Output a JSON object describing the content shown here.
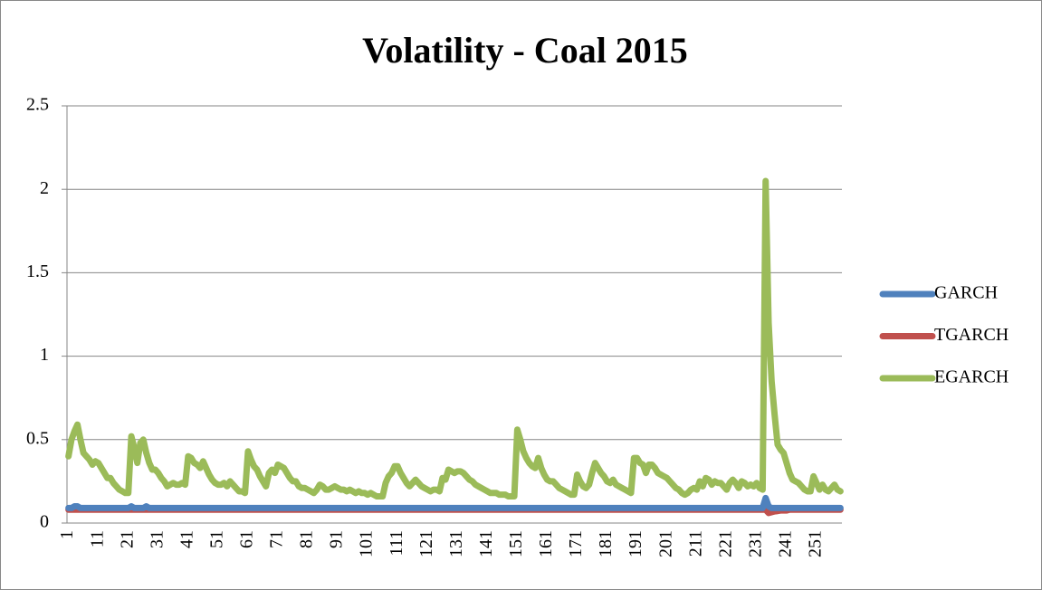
{
  "chart_data": {
    "type": "line",
    "title": "Volatility -  Coal 2015",
    "categories": [
      "1",
      null,
      null,
      null,
      null,
      null,
      null,
      null,
      null,
      null,
      "11",
      null,
      null,
      null,
      null,
      null,
      null,
      null,
      null,
      null,
      "21",
      null,
      null,
      null,
      null,
      null,
      null,
      null,
      null,
      null,
      "31",
      null,
      null,
      null,
      null,
      null,
      null,
      null,
      null,
      null,
      "41",
      null,
      null,
      null,
      null,
      null,
      null,
      null,
      null,
      null,
      "51",
      null,
      null,
      null,
      null,
      null,
      null,
      null,
      null,
      null,
      "61",
      null,
      null,
      null,
      null,
      null,
      null,
      null,
      null,
      null,
      "71",
      null,
      null,
      null,
      null,
      null,
      null,
      null,
      null,
      null,
      "81",
      null,
      null,
      null,
      null,
      null,
      null,
      null,
      null,
      null,
      "91",
      null,
      null,
      null,
      null,
      null,
      null,
      null,
      null,
      null,
      "101",
      null,
      null,
      null,
      null,
      null,
      null,
      null,
      null,
      null,
      "111",
      null,
      null,
      null,
      null,
      null,
      null,
      null,
      null,
      null,
      "121",
      null,
      null,
      null,
      null,
      null,
      null,
      null,
      null,
      null,
      "131",
      null,
      null,
      null,
      null,
      null,
      null,
      null,
      null,
      null,
      "141",
      null,
      null,
      null,
      null,
      null,
      null,
      null,
      null,
      null,
      "151",
      null,
      null,
      null,
      null,
      null,
      null,
      null,
      null,
      null,
      "161",
      null,
      null,
      null,
      null,
      null,
      null,
      null,
      null,
      null,
      "171",
      null,
      null,
      null,
      null,
      null,
      null,
      null,
      null,
      null,
      "181",
      null,
      null,
      null,
      null,
      null,
      null,
      null,
      null,
      null,
      "191",
      null,
      null,
      null,
      null,
      null,
      null,
      null,
      null,
      null,
      "201",
      null,
      null,
      null,
      null,
      null,
      null,
      null,
      null,
      null,
      "211",
      null,
      null,
      null,
      null,
      null,
      null,
      null,
      null,
      null,
      "221",
      null,
      null,
      null,
      null,
      null,
      null,
      null,
      null,
      null,
      "231",
      null,
      null,
      null,
      null,
      null,
      null,
      null,
      null,
      null,
      "241",
      null,
      null,
      null,
      null,
      null,
      null,
      null,
      null,
      null,
      "251",
      null,
      null,
      null,
      null,
      null,
      null,
      null,
      null
    ],
    "series": [
      {
        "name": "GARCH",
        "color": "#4f81bd",
        "values": [
          0.09,
          0.09,
          0.1,
          0.1,
          0.09,
          0.09,
          0.09,
          0.09,
          0.09,
          0.09,
          0.09,
          0.09,
          0.09,
          0.09,
          0.09,
          0.09,
          0.09,
          0.09,
          0.09,
          0.09,
          0.09,
          0.1,
          0.09,
          0.09,
          0.09,
          0.09,
          0.1,
          0.09,
          0.09,
          0.09,
          0.09,
          0.09,
          0.09,
          0.09,
          0.09,
          0.09,
          0.09,
          0.09,
          0.09,
          0.09,
          0.09,
          0.09,
          0.09,
          0.09,
          0.09,
          0.09,
          0.09,
          0.09,
          0.09,
          0.09,
          0.09,
          0.09,
          0.09,
          0.09,
          0.09,
          0.09,
          0.09,
          0.09,
          0.09,
          0.09,
          0.09,
          0.09,
          0.09,
          0.09,
          0.09,
          0.09,
          0.09,
          0.09,
          0.09,
          0.09,
          0.09,
          0.09,
          0.09,
          0.09,
          0.09,
          0.09,
          0.09,
          0.09,
          0.09,
          0.09,
          0.09,
          0.09,
          0.09,
          0.09,
          0.09,
          0.09,
          0.09,
          0.09,
          0.09,
          0.09,
          0.09,
          0.09,
          0.09,
          0.09,
          0.09,
          0.09,
          0.09,
          0.09,
          0.09,
          0.09,
          0.09,
          0.09,
          0.09,
          0.09,
          0.09,
          0.09,
          0.09,
          0.09,
          0.09,
          0.09,
          0.09,
          0.09,
          0.09,
          0.09,
          0.09,
          0.09,
          0.09,
          0.09,
          0.09,
          0.09,
          0.09,
          0.09,
          0.09,
          0.09,
          0.09,
          0.09,
          0.09,
          0.09,
          0.09,
          0.09,
          0.09,
          0.09,
          0.09,
          0.09,
          0.09,
          0.09,
          0.09,
          0.09,
          0.09,
          0.09,
          0.09,
          0.09,
          0.09,
          0.09,
          0.09,
          0.09,
          0.09,
          0.09,
          0.09,
          0.09,
          0.09,
          0.09,
          0.09,
          0.09,
          0.09,
          0.09,
          0.09,
          0.09,
          0.09,
          0.09,
          0.09,
          0.09,
          0.09,
          0.09,
          0.09,
          0.09,
          0.09,
          0.09,
          0.09,
          0.09,
          0.09,
          0.09,
          0.09,
          0.09,
          0.09,
          0.09,
          0.09,
          0.09,
          0.09,
          0.09,
          0.09,
          0.09,
          0.09,
          0.09,
          0.09,
          0.09,
          0.09,
          0.09,
          0.09,
          0.09,
          0.09,
          0.09,
          0.09,
          0.09,
          0.09,
          0.09,
          0.09,
          0.09,
          0.09,
          0.09,
          0.09,
          0.09,
          0.09,
          0.09,
          0.09,
          0.09,
          0.09,
          0.09,
          0.09,
          0.09,
          0.09,
          0.09,
          0.09,
          0.09,
          0.09,
          0.09,
          0.09,
          0.09,
          0.09,
          0.09,
          0.09,
          0.09,
          0.09,
          0.09,
          0.09,
          0.09,
          0.09,
          0.09,
          0.09,
          0.09,
          0.09,
          0.09,
          0.09,
          0.15,
          0.1,
          0.09,
          0.09,
          0.09,
          0.09,
          0.09,
          0.09,
          0.09,
          0.09,
          0.09,
          0.09,
          0.09,
          0.09,
          0.09,
          0.09,
          0.09,
          0.09,
          0.09,
          0.09,
          0.09,
          0.09,
          0.09,
          0.09,
          0.09,
          0.09
        ]
      },
      {
        "name": "TGARCH",
        "color": "#c0504d",
        "values": [
          0.08,
          0.08,
          0.08,
          0.08,
          0.08,
          0.08,
          0.08,
          0.08,
          0.08,
          0.08,
          0.08,
          0.08,
          0.08,
          0.08,
          0.08,
          0.08,
          0.08,
          0.08,
          0.08,
          0.08,
          0.08,
          0.08,
          0.08,
          0.08,
          0.08,
          0.08,
          0.08,
          0.08,
          0.08,
          0.08,
          0.08,
          0.08,
          0.08,
          0.08,
          0.08,
          0.08,
          0.08,
          0.08,
          0.08,
          0.08,
          0.08,
          0.08,
          0.08,
          0.08,
          0.08,
          0.08,
          0.08,
          0.08,
          0.08,
          0.08,
          0.08,
          0.08,
          0.08,
          0.08,
          0.08,
          0.08,
          0.08,
          0.08,
          0.08,
          0.08,
          0.08,
          0.08,
          0.08,
          0.08,
          0.08,
          0.08,
          0.08,
          0.08,
          0.08,
          0.08,
          0.08,
          0.08,
          0.08,
          0.08,
          0.08,
          0.08,
          0.08,
          0.08,
          0.08,
          0.08,
          0.08,
          0.08,
          0.08,
          0.08,
          0.08,
          0.08,
          0.08,
          0.08,
          0.08,
          0.08,
          0.08,
          0.08,
          0.08,
          0.08,
          0.08,
          0.08,
          0.08,
          0.08,
          0.08,
          0.08,
          0.08,
          0.08,
          0.08,
          0.08,
          0.08,
          0.08,
          0.08,
          0.08,
          0.08,
          0.08,
          0.08,
          0.08,
          0.08,
          0.08,
          0.08,
          0.08,
          0.08,
          0.08,
          0.08,
          0.08,
          0.08,
          0.08,
          0.08,
          0.08,
          0.08,
          0.08,
          0.08,
          0.08,
          0.08,
          0.08,
          0.08,
          0.08,
          0.08,
          0.08,
          0.08,
          0.08,
          0.08,
          0.08,
          0.08,
          0.08,
          0.08,
          0.08,
          0.08,
          0.08,
          0.08,
          0.08,
          0.08,
          0.08,
          0.08,
          0.08,
          0.08,
          0.08,
          0.08,
          0.08,
          0.08,
          0.08,
          0.08,
          0.08,
          0.08,
          0.08,
          0.08,
          0.08,
          0.08,
          0.08,
          0.08,
          0.08,
          0.08,
          0.08,
          0.08,
          0.08,
          0.08,
          0.08,
          0.08,
          0.08,
          0.08,
          0.08,
          0.08,
          0.08,
          0.08,
          0.08,
          0.08,
          0.08,
          0.08,
          0.08,
          0.08,
          0.08,
          0.08,
          0.08,
          0.08,
          0.08,
          0.08,
          0.08,
          0.08,
          0.08,
          0.08,
          0.08,
          0.08,
          0.08,
          0.08,
          0.08,
          0.08,
          0.08,
          0.08,
          0.08,
          0.08,
          0.08,
          0.08,
          0.08,
          0.08,
          0.08,
          0.08,
          0.08,
          0.08,
          0.08,
          0.08,
          0.08,
          0.08,
          0.08,
          0.08,
          0.08,
          0.08,
          0.08,
          0.08,
          0.08,
          0.08,
          0.08,
          0.08,
          0.08,
          0.08,
          0.08,
          0.08,
          0.08,
          0.08,
          0.08,
          0.06,
          0.065,
          0.07,
          0.072,
          0.075,
          0.075,
          0.075,
          0.08,
          0.08,
          0.08,
          0.08,
          0.08,
          0.08,
          0.08,
          0.08,
          0.08,
          0.08,
          0.08,
          0.08,
          0.08,
          0.08,
          0.08,
          0.08,
          0.08,
          0.08
        ]
      },
      {
        "name": "EGARCH",
        "color": "#9bbb59",
        "values": [
          0.4,
          0.5,
          0.55,
          0.59,
          0.5,
          0.42,
          0.4,
          0.38,
          0.35,
          0.37,
          0.36,
          0.33,
          0.3,
          0.27,
          0.27,
          0.24,
          0.22,
          0.2,
          0.19,
          0.18,
          0.18,
          0.52,
          0.45,
          0.36,
          0.48,
          0.5,
          0.42,
          0.36,
          0.32,
          0.32,
          0.3,
          0.27,
          0.25,
          0.22,
          0.23,
          0.24,
          0.23,
          0.23,
          0.24,
          0.23,
          0.4,
          0.39,
          0.36,
          0.35,
          0.33,
          0.37,
          0.33,
          0.29,
          0.26,
          0.24,
          0.23,
          0.23,
          0.24,
          0.22,
          0.25,
          0.23,
          0.21,
          0.19,
          0.19,
          0.18,
          0.43,
          0.38,
          0.34,
          0.32,
          0.28,
          0.25,
          0.22,
          0.3,
          0.32,
          0.3,
          0.35,
          0.34,
          0.33,
          0.3,
          0.27,
          0.25,
          0.25,
          0.22,
          0.21,
          0.21,
          0.2,
          0.19,
          0.18,
          0.2,
          0.23,
          0.22,
          0.2,
          0.2,
          0.21,
          0.22,
          0.21,
          0.2,
          0.2,
          0.19,
          0.2,
          0.19,
          0.18,
          0.19,
          0.18,
          0.18,
          0.17,
          0.18,
          0.17,
          0.16,
          0.16,
          0.16,
          0.24,
          0.28,
          0.3,
          0.34,
          0.34,
          0.3,
          0.27,
          0.24,
          0.22,
          0.24,
          0.26,
          0.24,
          0.22,
          0.21,
          0.2,
          0.19,
          0.2,
          0.2,
          0.19,
          0.27,
          0.26,
          0.32,
          0.31,
          0.3,
          0.31,
          0.31,
          0.3,
          0.28,
          0.26,
          0.25,
          0.23,
          0.22,
          0.21,
          0.2,
          0.19,
          0.18,
          0.18,
          0.18,
          0.17,
          0.17,
          0.17,
          0.16,
          0.16,
          0.16,
          0.56,
          0.5,
          0.43,
          0.39,
          0.36,
          0.34,
          0.33,
          0.39,
          0.33,
          0.29,
          0.26,
          0.25,
          0.25,
          0.23,
          0.21,
          0.2,
          0.19,
          0.18,
          0.17,
          0.17,
          0.29,
          0.25,
          0.22,
          0.21,
          0.23,
          0.3,
          0.36,
          0.33,
          0.3,
          0.28,
          0.25,
          0.24,
          0.26,
          0.23,
          0.22,
          0.21,
          0.2,
          0.19,
          0.18,
          0.39,
          0.39,
          0.36,
          0.35,
          0.3,
          0.35,
          0.35,
          0.33,
          0.3,
          0.29,
          0.28,
          0.27,
          0.25,
          0.23,
          0.21,
          0.2,
          0.18,
          0.17,
          0.18,
          0.2,
          0.21,
          0.2,
          0.25,
          0.22,
          0.27,
          0.26,
          0.23,
          0.25,
          0.24,
          0.24,
          0.22,
          0.2,
          0.24,
          0.26,
          0.24,
          0.21,
          0.25,
          0.24,
          0.22,
          0.23,
          0.22,
          0.24,
          0.21,
          0.2,
          2.05,
          1.2,
          0.85,
          0.65,
          0.47,
          0.44,
          0.42,
          0.36,
          0.3,
          0.26,
          0.25,
          0.24,
          0.22,
          0.2,
          0.19,
          0.19,
          0.28,
          0.24,
          0.2,
          0.23,
          0.2,
          0.19,
          0.21,
          0.23,
          0.2,
          0.19
        ]
      }
    ],
    "ylim": [
      0,
      2.5
    ],
    "yticks": [
      0,
      {
        "value": 0.5,
        "label": "0.5"
      },
      1,
      {
        "value": 1.5,
        "label": "1.5"
      },
      2,
      {
        "value": 2.5,
        "label": "2.5"
      }
    ],
    "grid": true,
    "legend": "right"
  }
}
